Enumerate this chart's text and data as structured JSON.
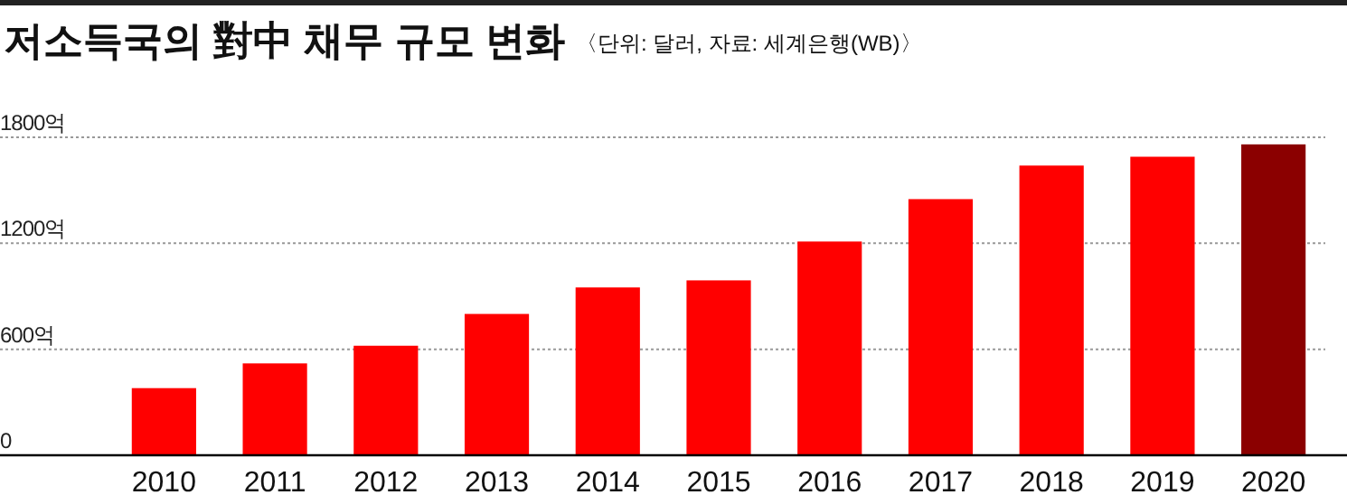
{
  "chart_data": {
    "type": "bar",
    "title": "저소득국의 對中 채무 규모 변화",
    "subtitle": "〈단위: 달러, 자료: 세계은행(WB)〉",
    "categories": [
      "2010",
      "2011",
      "2012",
      "2013",
      "2014",
      "2015",
      "2016",
      "2017",
      "2018",
      "2019",
      "2020"
    ],
    "values": [
      380,
      520,
      620,
      800,
      950,
      990,
      1210,
      1450,
      1640,
      1690,
      1760
    ],
    "colors": [
      "#ff0000",
      "#ff0000",
      "#ff0000",
      "#ff0000",
      "#ff0000",
      "#ff0000",
      "#ff0000",
      "#ff0000",
      "#ff0000",
      "#ff0000",
      "#8b0000"
    ],
    "ylim": [
      0,
      1800
    ],
    "yticks": [
      0,
      {
        "value": 600,
        "label": "600억"
      },
      {
        "value": 1200,
        "label": "1200억"
      },
      {
        "value": 1800,
        "label": "1800억"
      }
    ],
    "grid": "y"
  }
}
